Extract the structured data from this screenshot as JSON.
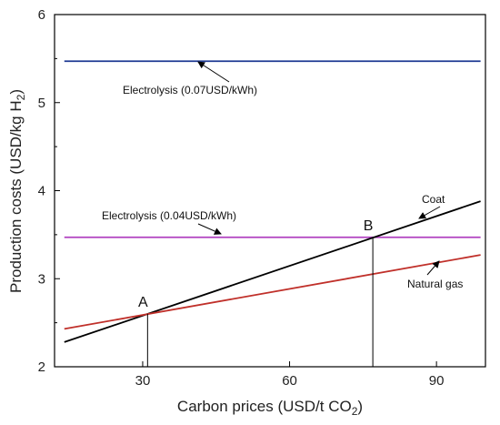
{
  "chart_data": {
    "type": "line",
    "xlabel": "Carbon prices (USD/t CO",
    "xlabel_sub": "2",
    "xlabel_suffix": ")",
    "ylabel": "Production costs (USD/kg H",
    "ylabel_sub": "2",
    "ylabel_suffix": ")",
    "xlim": [
      12,
      100
    ],
    "ylim": [
      2,
      6
    ],
    "x_ticks": [
      "30",
      "60",
      "90"
    ],
    "x_tick_values": [
      30,
      60,
      90
    ],
    "y_ticks": [
      "2",
      "3",
      "4",
      "5",
      "6"
    ],
    "y_tick_values": [
      2,
      3,
      4,
      5,
      6
    ],
    "grid": false,
    "series": [
      {
        "name": "Electrolysis (0.07USD/kWh)",
        "color": "#1f3a93",
        "x": [
          14,
          99
        ],
        "y": [
          5.47,
          5.47
        ]
      },
      {
        "name": "Electrolysis (0.04USD/kWh)",
        "color": "#b040c0",
        "x": [
          14,
          99
        ],
        "y": [
          3.47,
          3.47
        ]
      },
      {
        "name": "Coat",
        "color": "#000000",
        "x": [
          14,
          99
        ],
        "y": [
          2.28,
          3.88
        ]
      },
      {
        "name": "Natural gas",
        "color": "#c0302a",
        "x": [
          14,
          99
        ],
        "y": [
          2.43,
          3.27
        ]
      }
    ],
    "points": [
      {
        "label": "A",
        "x": 31,
        "y": 2.6
      },
      {
        "label": "B",
        "x": 77,
        "y": 3.47
      }
    ]
  }
}
